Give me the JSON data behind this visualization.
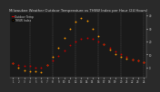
{
  "title": "Milwaukee Weather Outdoor Temperature vs THSW Index per Hour (24 Hours)",
  "title_fontsize": 2.8,
  "background_color": "#2a2a2a",
  "plot_bg_color": "#1a1a1a",
  "hours": [
    1,
    2,
    3,
    4,
    5,
    6,
    7,
    8,
    9,
    10,
    11,
    12,
    13,
    14,
    15,
    16,
    17,
    18,
    19,
    20,
    21,
    22,
    23,
    24
  ],
  "temp_vals": [
    3,
    2,
    1,
    1,
    0,
    0,
    2,
    5,
    9,
    13,
    17,
    20,
    22,
    23,
    22,
    20,
    18,
    15,
    12,
    10,
    8,
    6,
    5,
    4
  ],
  "thsw_vals": [
    3,
    0,
    -2,
    -3,
    -3,
    -4,
    2,
    8,
    15,
    23,
    30,
    35,
    38,
    36,
    30,
    24,
    18,
    14,
    10,
    8,
    7,
    6,
    5,
    4
  ],
  "temp_color": "#cc0000",
  "thsw_color": "#ff9900",
  "grid_color": "#888888",
  "tick_color": "#cccccc",
  "ylim": [
    -8,
    42
  ],
  "yticks": [
    0,
    10,
    20,
    30,
    40
  ],
  "xtick_fontsize": 2.0,
  "ytick_fontsize": 2.0,
  "marker_size": 1.8,
  "vline_positions": [
    4,
    8,
    12,
    16,
    20,
    24
  ],
  "legend_labels": [
    "Outdoor Temp",
    "THSW Index"
  ],
  "legend_fontsize": 2.2
}
